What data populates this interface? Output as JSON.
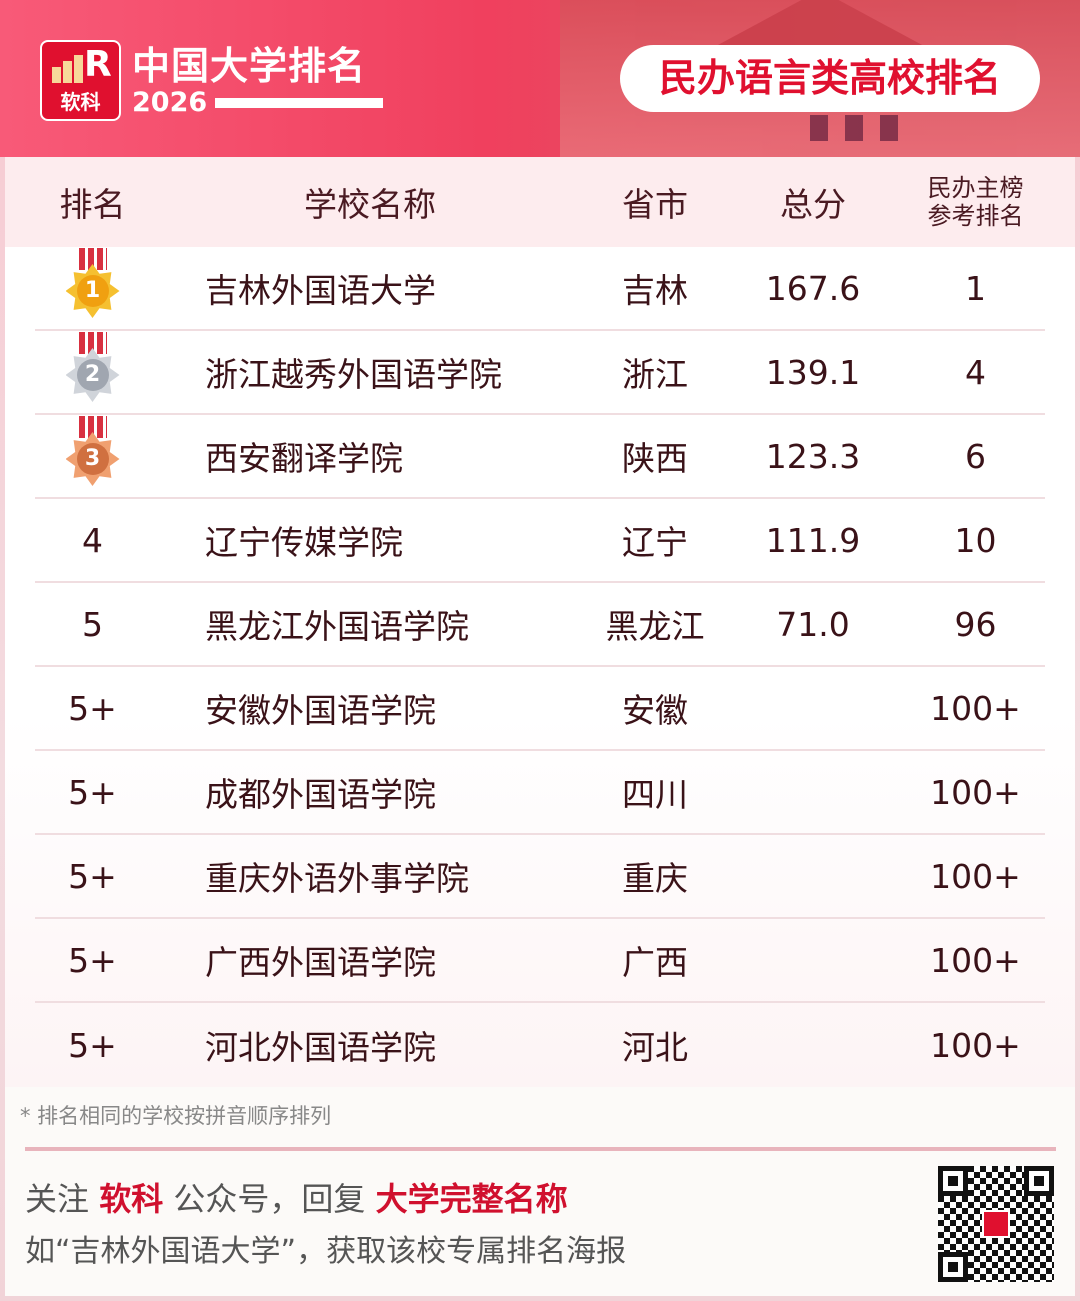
{
  "header": {
    "brand": "中国大学排名",
    "year": "2026",
    "logo_text": "软科",
    "badge": "民办语言类高校排名"
  },
  "table": {
    "columns": [
      "排名",
      "学校名称",
      "省市",
      "总分",
      "民办主榜参考排名"
    ],
    "column5_lines": [
      "民办主榜",
      "参考排名"
    ],
    "rows": [
      {
        "rank": "1",
        "medal": "gold",
        "name": "吉林外国语大学",
        "province": "吉林",
        "score": "167.6",
        "ref": "1"
      },
      {
        "rank": "2",
        "medal": "silver",
        "name": "浙江越秀外国语学院",
        "province": "浙江",
        "score": "139.1",
        "ref": "4"
      },
      {
        "rank": "3",
        "medal": "bronze",
        "name": "西安翻译学院",
        "province": "陕西",
        "score": "123.3",
        "ref": "6"
      },
      {
        "rank": "4",
        "name": "辽宁传媒学院",
        "province": "辽宁",
        "score": "111.9",
        "ref": "10"
      },
      {
        "rank": "5",
        "name": "黑龙江外国语学院",
        "province": "黑龙江",
        "score": "71.0",
        "ref": "96"
      },
      {
        "rank": "5+",
        "name": "安徽外国语学院",
        "province": "安徽",
        "score": "",
        "ref": "100+"
      },
      {
        "rank": "5+",
        "name": "成都外国语学院",
        "province": "四川",
        "score": "",
        "ref": "100+"
      },
      {
        "rank": "5+",
        "name": "重庆外语外事学院",
        "province": "重庆",
        "score": "",
        "ref": "100+"
      },
      {
        "rank": "5+",
        "name": "广西外国语学院",
        "province": "广西",
        "score": "",
        "ref": "100+"
      },
      {
        "rank": "5+",
        "name": "河北外国语学院",
        "province": "河北",
        "score": "",
        "ref": "100+"
      }
    ]
  },
  "footer": {
    "note": "* 排名相同的学校按拼音顺序排列",
    "line1_a": "关注 ",
    "line1_b": "软科",
    "line1_c": " 公众号，回复 ",
    "line1_d": "大学完整名称",
    "line2": "如“吉林外国语大学”，获取该校专属排名海报"
  },
  "colors": {
    "brand": "#e0102f",
    "gold": "#f5b820",
    "silver": "#b8bcc4",
    "bronze": "#e08a50",
    "text": "#3a1218"
  }
}
